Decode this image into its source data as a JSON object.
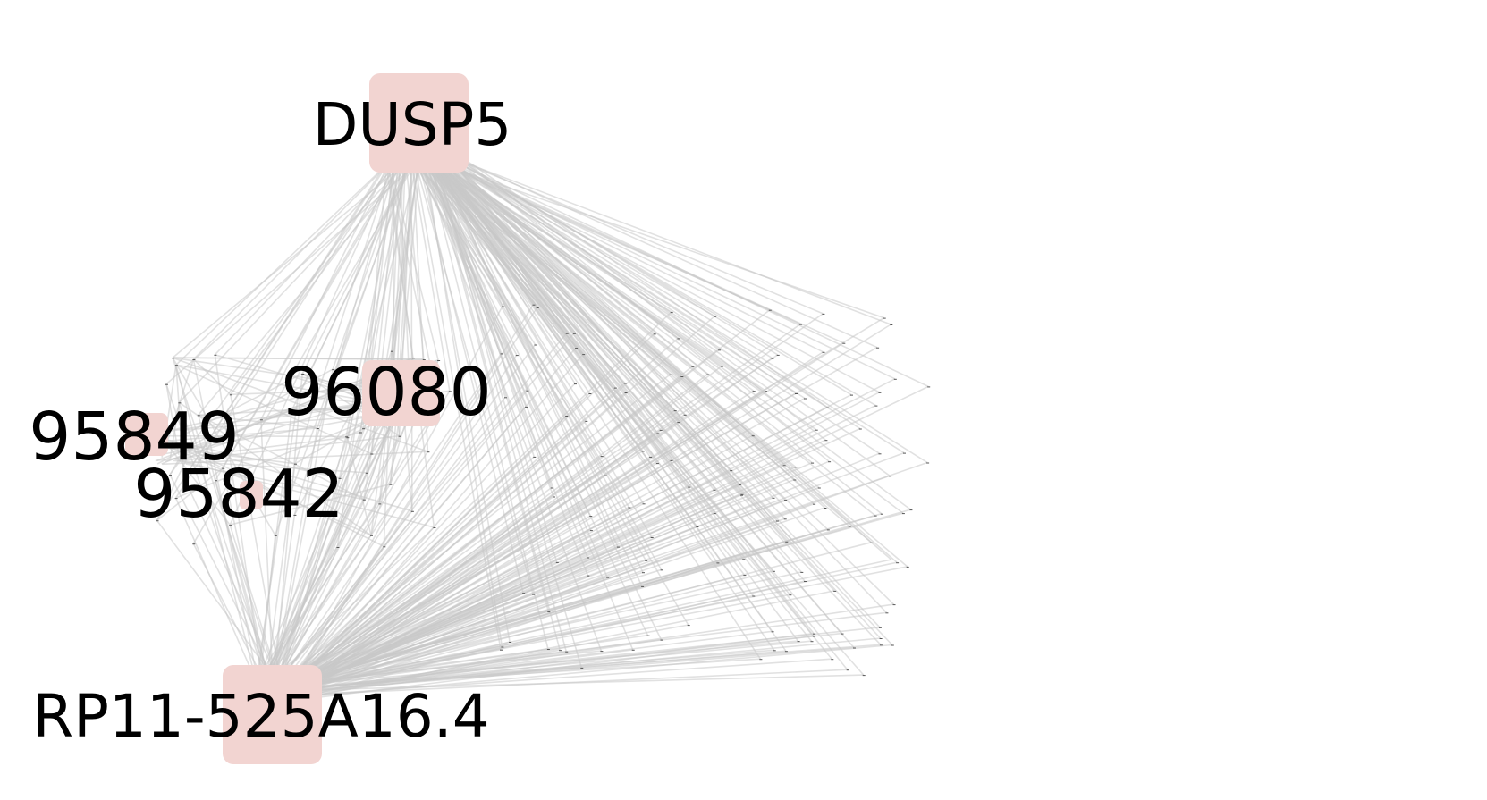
{
  "diagram": {
    "type": "network-graph",
    "edge_color": "#c8c8c8",
    "node_color": "#f2d4d1",
    "label_color": "#000000",
    "nodes": [
      {
        "id": "dusp5",
        "label": "DUSP5"
      },
      {
        "id": "n96080",
        "label": "96080"
      },
      {
        "id": "n95849",
        "label": "95849"
      },
      {
        "id": "n95842",
        "label": "95842"
      },
      {
        "id": "rp11",
        "label": "RP11-525A16.4"
      }
    ]
  }
}
